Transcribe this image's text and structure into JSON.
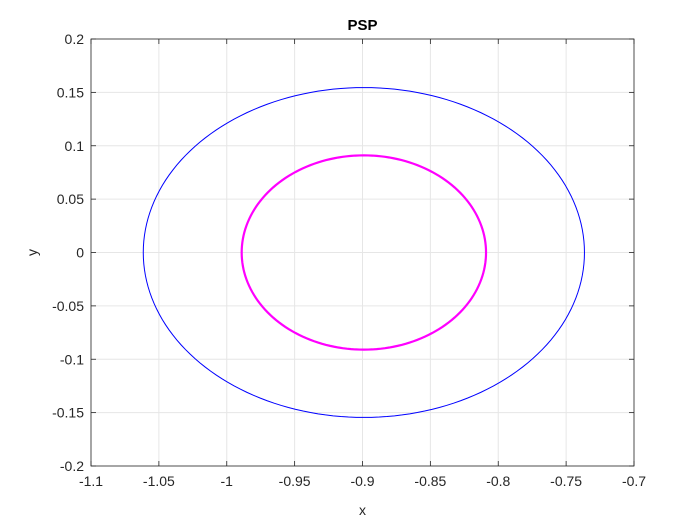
{
  "chart_data": {
    "type": "line",
    "title": "PSP",
    "xlabel": "x",
    "ylabel": "y",
    "xlim": [
      -1.1,
      -0.7
    ],
    "ylim": [
      -0.2,
      0.2
    ],
    "xticks": [
      -1.1,
      -1.05,
      -1,
      -0.95,
      -0.9,
      -0.85,
      -0.8,
      -0.75,
      -0.7
    ],
    "xtick_labels": [
      "-1.1",
      "-1.05",
      "-1",
      "-0.95",
      "-0.9",
      "-0.85",
      "-0.8",
      "-0.75",
      "-0.7"
    ],
    "yticks": [
      -0.2,
      -0.15,
      -0.1,
      -0.05,
      0,
      0.05,
      0.1,
      0.15,
      0.2
    ],
    "ytick_labels": [
      "-0.2",
      "-0.15",
      "-0.1",
      "-0.05",
      "0",
      "0.05",
      "0.1",
      "0.15",
      "0.2"
    ],
    "grid": true,
    "box": true,
    "series": [
      {
        "shape": "closed-curve",
        "color": "#0000ff",
        "center": [
          -0.899,
          0
        ],
        "x_range": [
          -1.0615,
          -0.7365
        ],
        "y_range": [
          -0.1545,
          0.1545
        ]
      },
      {
        "shape": "closed-curve",
        "color": "#ff00ff",
        "center": [
          -0.899,
          0
        ],
        "x_range": [
          -0.989,
          -0.809
        ],
        "y_range": [
          -0.091,
          0.091
        ]
      }
    ]
  }
}
